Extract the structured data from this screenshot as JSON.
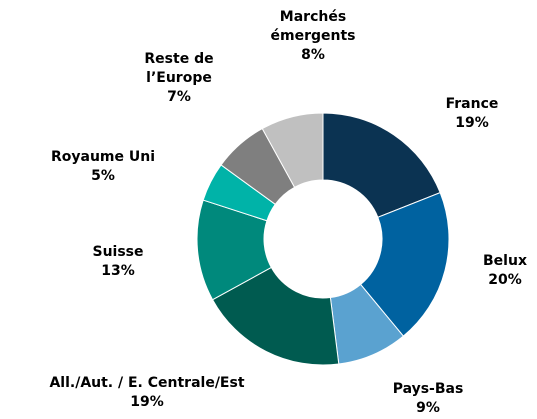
{
  "chart_data": {
    "type": "pie",
    "categories": [
      "France",
      "Belux",
      "Pays-Bas",
      "All./Aut. / E. Centrale/Est",
      "Suisse",
      "Royaume Uni",
      "Reste de l’Europe",
      "Marchés émergents"
    ],
    "values": [
      19,
      20,
      9,
      19,
      13,
      5,
      7,
      8
    ],
    "value_labels": [
      "19%",
      "20%",
      "9%",
      "19%",
      "13%",
      "5%",
      "7%",
      "8%"
    ],
    "colors": [
      "#0b3352",
      "#0062a0",
      "#5aa2d0",
      "#005b50",
      "#00897c",
      "#00b3a8",
      "#7f7f7f",
      "#c0c0c0"
    ]
  }
}
